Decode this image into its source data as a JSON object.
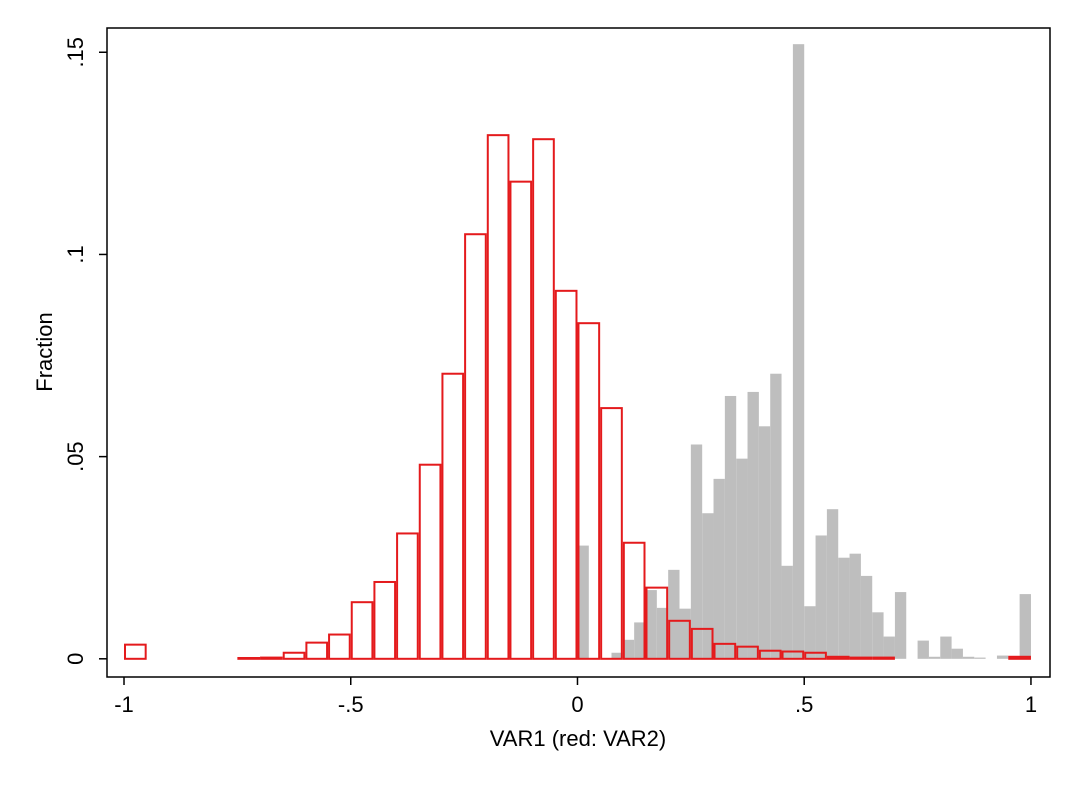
{
  "chart_data": {
    "type": "histogram",
    "xlabel": "VAR1 (red: VAR2)",
    "ylabel": "Fraction",
    "xlim": [
      -1.0375,
      1.042
    ],
    "ylim": [
      -0.0045,
      0.156
    ],
    "xticks": [
      -1,
      {
        "value": -0.5,
        "label": "-.5"
      },
      0,
      {
        "value": 0.5,
        "label": ".5"
      },
      1
    ],
    "yticks": [
      0,
      {
        "value": 0.05,
        "label": ".05"
      },
      {
        "value": 0.1,
        "label": ".1"
      },
      {
        "value": 0.15,
        "label": ".15"
      }
    ],
    "series": [
      {
        "color": "#bebebe",
        "filled": true,
        "bins": [
          0,
          0.025,
          0.05,
          0.075,
          0.1,
          0.125,
          0.15,
          0.175,
          0.2,
          0.225,
          0.25,
          0.275,
          0.3,
          0.325,
          0.35,
          0.375,
          0.4,
          0.425,
          0.45,
          0.475,
          0.5,
          0.525,
          0.55,
          0.575,
          0.6,
          0.625,
          0.65,
          0.675,
          0.7,
          0.725,
          0.75,
          0.775,
          0.8,
          0.825,
          0.85,
          0.875,
          0.9,
          0.925,
          0.95,
          0.975,
          1
        ],
        "values": [
          0.028,
          0,
          0,
          0.0015,
          0.0047,
          0.009,
          0.017,
          0.0126,
          0.022,
          0.0124,
          0.053,
          0.036,
          0.0445,
          0.065,
          0.0495,
          0.066,
          0.0575,
          0.0705,
          0.023,
          0.152,
          0.013,
          0.0305,
          0.037,
          0.025,
          0.026,
          0.0205,
          0.0115,
          0.0055,
          0.0165,
          0,
          0.0045,
          0.0005,
          0.0055,
          0.0025,
          0.0005,
          0.0003,
          0,
          0.0008,
          0.0005,
          0.016
        ]
      },
      {
        "color": "#e41a1c",
        "filled": false,
        "bins": [
          -1,
          -0.95,
          -0.9,
          -0.85,
          -0.8,
          -0.75,
          -0.7,
          -0.65,
          -0.6,
          -0.55,
          -0.5,
          -0.45,
          -0.4,
          -0.35,
          -0.3,
          -0.25,
          -0.2,
          -0.15,
          -0.1,
          -0.05,
          0,
          0.05,
          0.1,
          0.15,
          0.2,
          0.25,
          0.3,
          0.35,
          0.4,
          0.45,
          0.5,
          0.55,
          0.6,
          0.65,
          0.7,
          0.75,
          0.8,
          0.85,
          0.9,
          0.95,
          1
        ],
        "values": [
          0.0035,
          0,
          0,
          0,
          0,
          0.0002,
          0.0003,
          0.0015,
          0.004,
          0.006,
          0.014,
          0.019,
          0.031,
          0.048,
          0.0705,
          0.105,
          0.1295,
          0.118,
          0.1285,
          0.091,
          0.083,
          0.062,
          0.0287,
          0.0176,
          0.0094,
          0.0074,
          0.0037,
          0.003,
          0.002,
          0.0018,
          0.0015,
          0.0005,
          0.0003,
          0.0003,
          0,
          0,
          0,
          0,
          0,
          0.0005
        ]
      }
    ]
  }
}
